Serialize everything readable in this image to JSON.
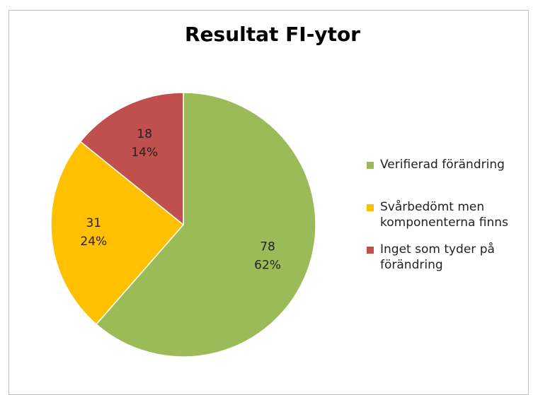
{
  "chart_data": {
    "type": "pie",
    "title": "Resultat FI-ytor",
    "categories": [
      "Verifierad förändring",
      "Svårbedömt men komponenterna finns",
      "Inget som tyder på förändring"
    ],
    "values": [
      78,
      31,
      18
    ],
    "percent_labels": [
      "62%",
      "24%",
      "14%"
    ],
    "colors": [
      "#9bbb59",
      "#ffc000",
      "#c0504d"
    ]
  }
}
